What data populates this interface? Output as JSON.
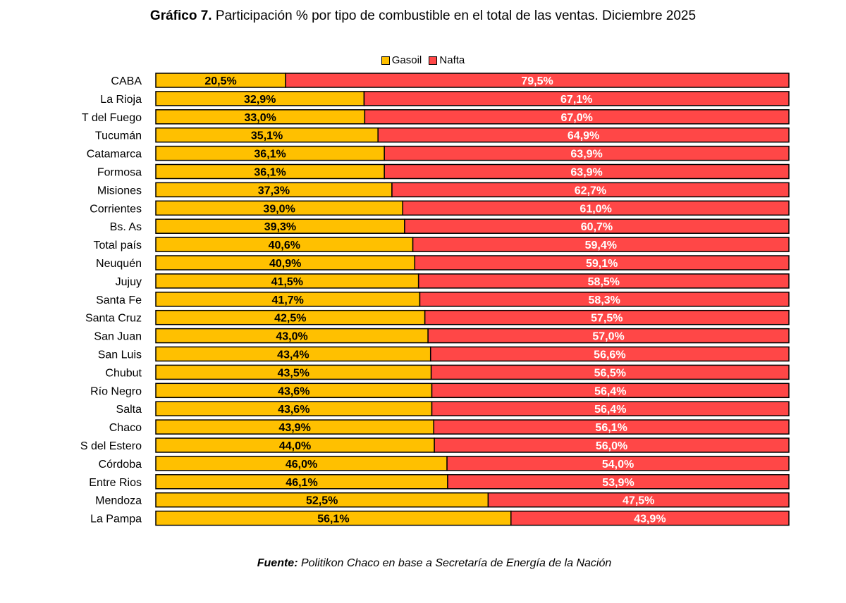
{
  "header": {
    "title_bold": "Gráfico 7.",
    "title_rest": " Participación % por tipo de combustible en el total de las ventas. Diciembre 2025"
  },
  "footer": {
    "source_label": "Fuente:",
    "source_text": " Politikon Chaco en base a Secretaría de Energía de la Nación"
  },
  "colors": {
    "gasoil": "#FFC000",
    "nafta": "#FF4747"
  },
  "chart_data": {
    "type": "bar",
    "orientation": "horizontal",
    "stacked": true,
    "percent": true,
    "title": "Gráfico 7. Participación % por tipo de combustible en el total de las ventas. Diciembre 2025",
    "legend_position": "top-center",
    "categories": [
      "CABA",
      "La Rioja",
      "T del Fuego",
      "Tucumán",
      "Catamarca",
      "Formosa",
      "Misiones",
      "Corrientes",
      "Bs. As",
      "Total país",
      "Neuquén",
      "Jujuy",
      "Santa Fe",
      "Santa Cruz",
      "San Juan",
      "San Luis",
      "Chubut",
      "Río Negro",
      "Salta",
      "Chaco",
      "S del Estero",
      "Córdoba",
      "Entre Rios",
      "Mendoza",
      "La Pampa"
    ],
    "series": [
      {
        "name": "Gasoil",
        "values": [
          20.5,
          32.9,
          33.0,
          35.1,
          36.1,
          36.1,
          37.3,
          39.0,
          39.3,
          40.6,
          40.9,
          41.5,
          41.7,
          42.5,
          43.0,
          43.4,
          43.5,
          43.6,
          43.6,
          43.9,
          44.0,
          46.0,
          46.1,
          52.5,
          56.1
        ],
        "labels": [
          "20,5%",
          "32,9%",
          "33,0%",
          "35,1%",
          "36,1%",
          "36,1%",
          "37,3%",
          "39,0%",
          "39,3%",
          "40,6%",
          "40,9%",
          "41,5%",
          "41,7%",
          "42,5%",
          "43,0%",
          "43,4%",
          "43,5%",
          "43,6%",
          "43,6%",
          "43,9%",
          "44,0%",
          "46,0%",
          "46,1%",
          "52,5%",
          "56,1%"
        ]
      },
      {
        "name": "Nafta",
        "values": [
          79.5,
          67.1,
          67.0,
          64.9,
          63.9,
          63.9,
          62.7,
          61.0,
          60.7,
          59.4,
          59.1,
          58.5,
          58.3,
          57.5,
          57.0,
          56.6,
          56.5,
          56.4,
          56.4,
          56.1,
          56.0,
          54.0,
          53.9,
          47.5,
          43.9
        ],
        "labels": [
          "79,5%",
          "67,1%",
          "67,0%",
          "64,9%",
          "63,9%",
          "63,9%",
          "62,7%",
          "61,0%",
          "60,7%",
          "59,4%",
          "59,1%",
          "58,5%",
          "58,3%",
          "57,5%",
          "57,0%",
          "56,6%",
          "56,5%",
          "56,4%",
          "56,4%",
          "56,1%",
          "56,0%",
          "54,0%",
          "53,9%",
          "47,5%",
          "43,9%"
        ]
      }
    ],
    "xlim": [
      0,
      100
    ]
  }
}
